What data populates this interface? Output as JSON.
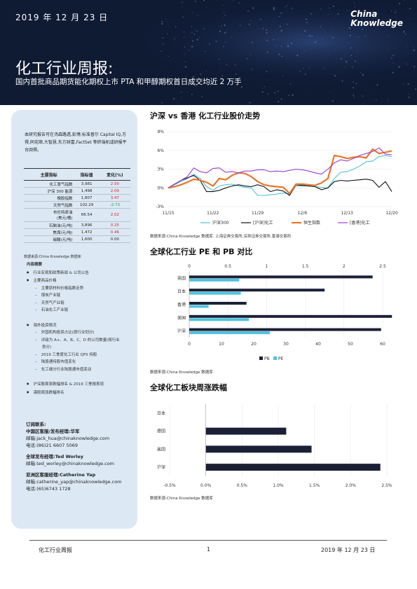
{
  "header": {
    "date": "2019 年 12 月 23 日",
    "brand_line1": "China",
    "brand_line2": "Knowledge",
    "title": "化工行业周报:",
    "subtitle": "国内首批商品期货能化期权上市 PTA 和甲醇期权首日成交均近 2 万手"
  },
  "sidebar": {
    "intro": "本研究报告可在汤森路透,彭博,标准普尔 Capital IQ,万得,同花顺,大智慧,东方财富,FactSet 等终端机或研报平台阅得。",
    "table": {
      "headers": [
        "主要指标",
        "指标值",
        "变化(%)"
      ],
      "rows": [
        {
          "name": "化工景气指数",
          "value": "3,981",
          "change": "2.50",
          "dir": "up"
        },
        {
          "name": "沪深 300 能源",
          "value": "1,498",
          "change": "2.09",
          "dir": "up"
        },
        {
          "name": "橡胶指数",
          "value": "1,807",
          "change": "3.47",
          "dir": "up"
        },
        {
          "name": "天然气指数",
          "value": "102.29",
          "change": "-2.73",
          "dir": "down"
        },
        {
          "name": "布伦特原油\n(美元/桶)",
          "value": "66.54",
          "change": "2.02",
          "dir": "up"
        },
        {
          "name": "石脑油(元/吨)",
          "value": "3,896",
          "change": "0.25",
          "dir": "up"
        },
        {
          "name": "焦煤(元/吨)",
          "value": "1,472",
          "change": "0.46",
          "dir": "up"
        },
        {
          "name": "硝酸(元/吨)",
          "value": "1,600",
          "change": "0.00",
          "dir": "flat"
        }
      ],
      "source": "数据来源:China Knowledge 数据库"
    },
    "toc": {
      "heading": "内容摘要",
      "items": [
        {
          "type": "b",
          "text": "行业宏观和政策新闻 & 公司公告"
        },
        {
          "type": "b",
          "text": "主要商品价格"
        },
        {
          "type": "s",
          "text": "主要原材料价格指数走势"
        },
        {
          "type": "s",
          "text": "煤炭产业链"
        },
        {
          "type": "s",
          "text": "天然气产业链"
        },
        {
          "type": "s",
          "text": "石油化工产业链"
        },
        {
          "type": "gap",
          "text": ""
        },
        {
          "type": "b",
          "text": "海外投资情况"
        },
        {
          "type": "s",
          "text": "外国机构投资占比(按行业划分)"
        },
        {
          "type": "s",
          "text": "评级为 A+、A、B、C、D 的公司数量(按行业"
        },
        {
          "type": "c",
          "text": "划分)"
        },
        {
          "type": "s",
          "text": "2019 三季度化工行业 QFII 持股"
        },
        {
          "type": "s",
          "text": "陆股通持股市值变化"
        },
        {
          "type": "s",
          "text": "化工细分行业陆股通市值变动"
        },
        {
          "type": "gap",
          "text": ""
        },
        {
          "type": "b",
          "text": "沪深股周涨跌幅排名 & 2019 三季报表现"
        },
        {
          "type": "b",
          "text": "港股周涨跌幅排名"
        }
      ]
    },
    "contact": {
      "heading": "订阅联系:",
      "groups": [
        {
          "role": "中国区客服/发布经理:华军",
          "email": "邮箱:jack_hua@chinaknowledge.com",
          "phone": "电话:(86)21 6607 5069"
        },
        {
          "role": "全球发布经理:Ted Worley",
          "email": "邮箱:ted_worley@chinaknowledge.com",
          "phone": ""
        },
        {
          "role": "亚洲区客服经理:Catherine Yap",
          "email": "邮箱:catherine_yap@chinaknowledge.com",
          "phone": "电话:(65)6743 1728"
        }
      ]
    }
  },
  "chart_data": [
    {
      "type": "line",
      "title": "沪深 vs 香港 化工行业股价走势",
      "x": [
        "11/15",
        "11/16",
        "11/17",
        "11/18",
        "11/19",
        "11/20",
        "11/21",
        "11/22",
        "11/23",
        "11/24",
        "11/25",
        "11/26",
        "11/27",
        "11/28",
        "11/29",
        "11/30",
        "12/1",
        "12/2",
        "12/3",
        "12/4",
        "12/5",
        "12/6",
        "12/7",
        "12/8",
        "12/9",
        "12/10",
        "12/11",
        "12/12",
        "12/13",
        "12/14",
        "12/15",
        "12/16",
        "12/17",
        "12/18",
        "12/19",
        "12/20"
      ],
      "xticks": [
        "11/15",
        "11/22",
        "11/29",
        "12/6",
        "12/13",
        "12/20"
      ],
      "ylim": [
        -3,
        9
      ],
      "yticks": [
        "-3%",
        "0%",
        "3%",
        "6%",
        "9%"
      ],
      "series": [
        {
          "name": "沪深300",
          "color": "#4ec3e0",
          "values": [
            0,
            0.5,
            1,
            1.5,
            2.2,
            1.5,
            0.2,
            -0.4,
            0.3,
            0.5,
            0.6,
            0.3,
            0.1,
            0,
            -1.2,
            -1.2,
            -1.1,
            -1.0,
            -0.8,
            -1.0,
            0.3,
            0.3,
            0.3,
            0.2,
            0.1,
            0,
            1.5,
            2.5,
            2.6,
            3.0,
            3.5,
            4.2,
            4.3,
            5.0,
            5.2,
            5.0
          ]
        },
        {
          "name": "[沪深]化工",
          "color": "#111111",
          "values": [
            0,
            0.6,
            1.2,
            1.6,
            2.0,
            1.2,
            -0.6,
            -0.6,
            -0.4,
            0,
            0.3,
            0.5,
            0.3,
            0.2,
            0.5,
            0.2,
            -0.6,
            -0.3,
            -0.5,
            -1.2,
            0.5,
            0.4,
            0.3,
            0.2,
            -0.3,
            0,
            1.0,
            1.2,
            1.1,
            1.2,
            1.3,
            1.4,
            1.2,
            0.1,
            1.0,
            -0.6
          ]
        },
        {
          "name": "恒生指数",
          "color": "#e8772a",
          "values": [
            0,
            0.2,
            0.5,
            0.9,
            1.4,
            1.2,
            0.9,
            0.3,
            1.5,
            1.3,
            2.0,
            2.4,
            2.3,
            1.8,
            1.0,
            0.5,
            0.3,
            0.2,
            0.1,
            -0.9,
            0.6,
            0.6,
            0.5,
            0.4,
            0.8,
            1.5,
            5.2,
            5.0,
            4.7,
            4.9,
            5.0,
            4.8,
            6.2,
            5.5,
            5.7,
            5.9
          ]
        },
        {
          "name": "[香港]化工",
          "color": "#9e3ed1",
          "values": [
            0,
            0.6,
            1.2,
            1.8,
            3.2,
            2.6,
            2.4,
            3.1,
            3.2,
            2.5,
            2.6,
            2.4,
            2.7,
            2.7,
            2.9,
            2.9,
            2.6,
            2.7,
            2.6,
            2.8,
            3.0,
            2.9,
            2.7,
            2.4,
            2.2,
            3.0,
            4.0,
            4.5,
            4.3,
            4.7,
            5.2,
            5.5,
            5.8,
            6.4,
            5.4,
            5.3
          ]
        }
      ],
      "source": "数据来源:China Knowledge 数据库. 上海证券交易所,深圳证券交易所,香港交易所"
    },
    {
      "type": "bar",
      "title": "全球化工行业 PE 和 PB 对比",
      "categories": [
        "英国",
        "日本",
        "香港",
        "美国",
        "沪深"
      ],
      "pe_axis": [
        0,
        10,
        20,
        30,
        40,
        50,
        60
      ],
      "pb_axis": [
        "0",
        "0.5",
        "1",
        "1.5",
        "2",
        "2.5"
      ],
      "series": [
        {
          "name": "PB",
          "color": "#1c2036",
          "axis": "pb",
          "values": [
            2.37,
            1.75,
            0.74,
            2.62,
            2.48
          ]
        },
        {
          "name": "PE",
          "color": "#4ec3e0",
          "axis": "pe",
          "values": [
            15.5,
            16,
            6,
            18.5,
            25
          ]
        }
      ],
      "source": "数据来源:China Knowledge 数据库"
    },
    {
      "type": "bar",
      "title": "全球化工板块周涨跌幅",
      "categories": [
        "日本",
        "德国",
        "美国",
        "沪深"
      ],
      "values": [
        0,
        1.11,
        1.46,
        2.41
      ],
      "color": "#1c2036",
      "xticks": [
        "-0.5%",
        "0.0%",
        "0.5%",
        "1.0%",
        "1.5%",
        "2.0%",
        "2.5%"
      ],
      "xlim": [
        -0.5,
        2.5
      ],
      "source": "数据来源:China Knowledge 数据库"
    }
  ],
  "footer": {
    "left": "化工行业周报",
    "page": "1",
    "right": "2019 年 12 月 23 日"
  }
}
